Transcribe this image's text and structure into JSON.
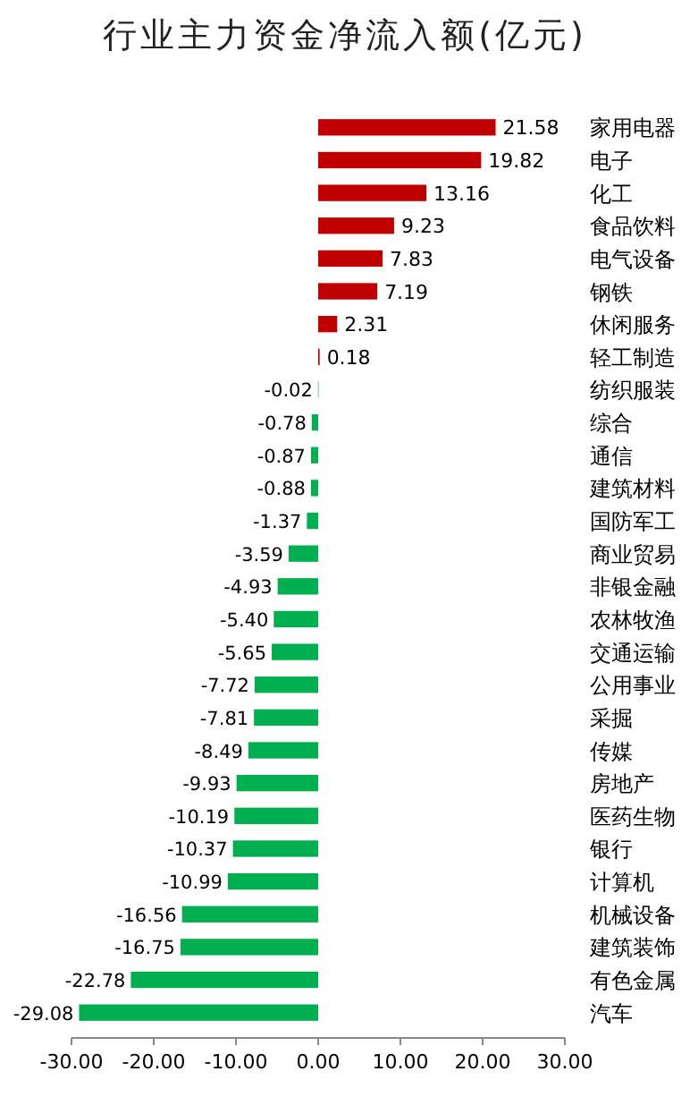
{
  "chart_data": {
    "type": "bar",
    "orientation": "horizontal",
    "title": "行业主力资金净流入额(亿元)",
    "categories": [
      "家用电器",
      "电子",
      "化工",
      "食品饮料",
      "电气设备",
      "钢铁",
      "休闲服务",
      "轻工制造",
      "纺织服装",
      "综合",
      "通信",
      "建筑材料",
      "国防军工",
      "商业贸易",
      "非银金融",
      "农林牧渔",
      "交通运输",
      "公用事业",
      "采掘",
      "传媒",
      "房地产",
      "医药生物",
      "银行",
      "计算机",
      "机械设备",
      "建筑装饰",
      "有色金属",
      "汽车"
    ],
    "values": [
      21.58,
      19.82,
      13.16,
      9.23,
      7.83,
      7.19,
      2.31,
      0.18,
      -0.02,
      -0.78,
      -0.87,
      -0.88,
      -1.37,
      -3.59,
      -4.93,
      -5.4,
      -5.65,
      -7.72,
      -7.81,
      -8.49,
      -9.93,
      -10.19,
      -10.37,
      -10.99,
      -16.56,
      -16.75,
      -22.78,
      -29.08
    ],
    "value_labels": [
      "21.58",
      "19.82",
      "13.16",
      "9.23",
      "7.83",
      "7.19",
      "2.31",
      "0.18",
      "-0.02",
      "-0.78",
      "-0.87",
      "-0.88",
      "-1.37",
      "-3.59",
      "-4.93",
      "-5.40",
      "-5.65",
      "-7.72",
      "-7.81",
      "-8.49",
      "-9.93",
      "-10.19",
      "-10.37",
      "-10.99",
      "-16.56",
      "-16.75",
      "-22.78",
      "-29.08"
    ],
    "colors": [
      "#c00000",
      "#c00000",
      "#c00000",
      "#c00000",
      "#c00000",
      "#c00000",
      "#c00000",
      "#c00000",
      "#00b050",
      "#00b050",
      "#00b050",
      "#00b050",
      "#00b050",
      "#00b050",
      "#00b050",
      "#00b050",
      "#00b050",
      "#00b050",
      "#00b050",
      "#00b050",
      "#00b050",
      "#00b050",
      "#00b050",
      "#00b050",
      "#00b050",
      "#00b050",
      "#00b050",
      "#00b050"
    ],
    "xlim": [
      -30,
      30
    ],
    "xticks": [
      {
        "value": -30,
        "label": "-30.00"
      },
      {
        "value": -20,
        "label": "-20.00"
      },
      {
        "value": -10,
        "label": "-10.00"
      },
      {
        "value": 0,
        "label": "0.00"
      },
      {
        "value": 10,
        "label": "10.00"
      },
      {
        "value": 20,
        "label": "20.00"
      },
      {
        "value": 30,
        "label": "30.00"
      }
    ],
    "grid": false
  }
}
